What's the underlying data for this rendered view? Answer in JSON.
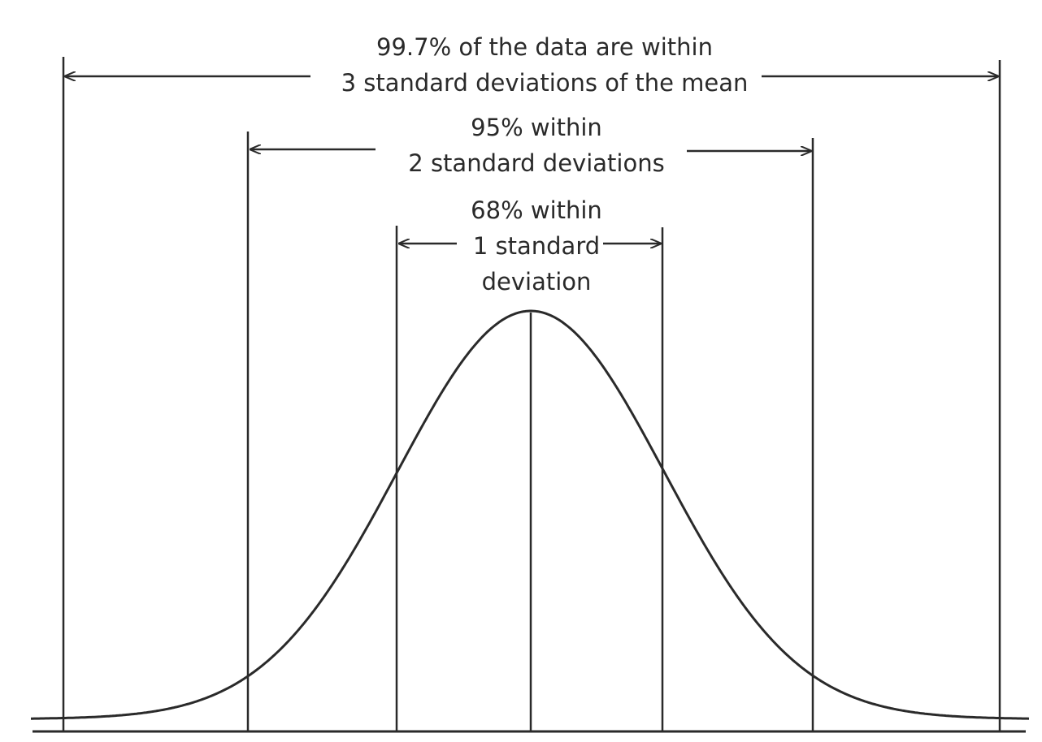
{
  "annotations": {
    "three_sd": {
      "line1": "99.7% of the data are within",
      "line2": "3 standard deviations of the mean"
    },
    "two_sd": {
      "line1": "95% within",
      "line2": "2 standard deviations"
    },
    "one_sd": {
      "line1": "68% within",
      "line2": "1 standard",
      "line3": "deviation"
    }
  },
  "colors": {
    "ink": "#2a2a2a",
    "background": "#ffffff"
  }
}
